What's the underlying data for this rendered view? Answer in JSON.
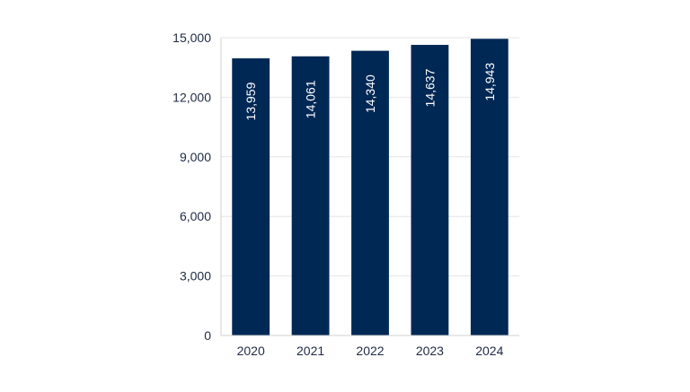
{
  "chart_data": {
    "type": "bar",
    "categories": [
      "2020",
      "2021",
      "2022",
      "2023",
      "2024"
    ],
    "values": [
      13959,
      14061,
      14340,
      14637,
      14943
    ],
    "value_labels": [
      "13,959",
      "14,061",
      "14,340",
      "14,637",
      "14,943"
    ],
    "yticks": [
      0,
      3000,
      6000,
      9000,
      12000,
      15000
    ],
    "ytick_labels": [
      "0",
      "3,000",
      "6,000",
      "9,000",
      "12,000",
      "15,000"
    ],
    "ylim": [
      0,
      15000
    ],
    "title": "",
    "xlabel": "",
    "ylabel": "",
    "grid": true,
    "colors": {
      "bar": "#002855",
      "bar_label": "#ffffff",
      "tick_label": "#1f2a44",
      "grid": "#e6e6e6",
      "axis": "#d0d0d0"
    }
  }
}
